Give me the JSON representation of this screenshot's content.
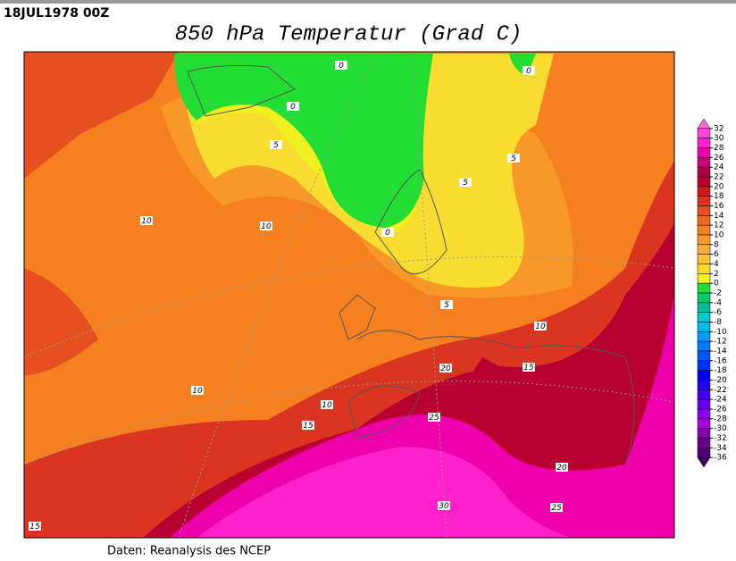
{
  "header": {
    "date": "18JUL1978 00Z",
    "title": "850 hPa Temperatur (Grad C)"
  },
  "footer": "Daten: Reanalysis des NCEP",
  "contour_labels": [
    0,
    0,
    0,
    5,
    5,
    5,
    10,
    10,
    0,
    5,
    10,
    20,
    15,
    10,
    10,
    15,
    25,
    20,
    30,
    25,
    15
  ],
  "colorbar": {
    "levels": [
      32,
      30,
      28,
      26,
      24,
      22,
      20,
      18,
      16,
      14,
      12,
      10,
      8,
      6,
      4,
      2,
      0,
      -2,
      -4,
      -6,
      -8,
      -10,
      -12,
      -14,
      -16,
      -18,
      -20,
      -22,
      -24,
      -26,
      -28,
      -30,
      -32,
      -34,
      -36
    ],
    "colors": [
      "#ff66dd",
      "#ff44dd",
      "#ff22cc",
      "#ee00aa",
      "#cc0077",
      "#aa0044",
      "#b80030",
      "#cc1a1a",
      "#d93520",
      "#e65020",
      "#ee6a20",
      "#f58020",
      "#f89828",
      "#f8ae30",
      "#f8c430",
      "#f8dc30",
      "#f0f020",
      "#22dd33",
      "#00cc66",
      "#00bb99",
      "#00cccc",
      "#00bbee",
      "#0099ff",
      "#0077ff",
      "#0055ff",
      "#0033ff",
      "#0000ee",
      "#2200ee",
      "#4400ee",
      "#6600ee",
      "#8800ee",
      "#aa00dd",
      "#8800aa",
      "#660088",
      "#550077",
      "#440066"
    ]
  }
}
